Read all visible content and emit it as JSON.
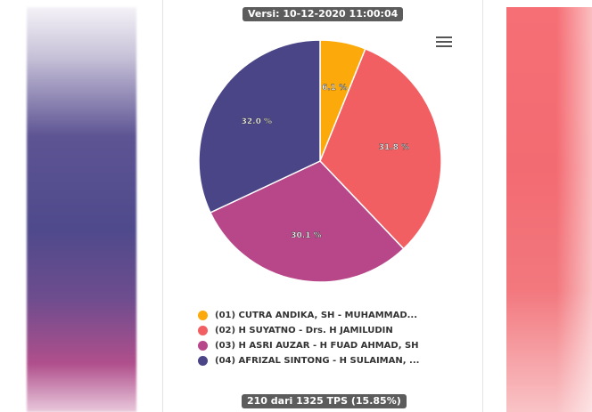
{
  "header": {
    "version_text": "Versi: 10-12-2020 11:00:04"
  },
  "footer": {
    "tps_text": "210 dari 1325 TPS (15.85%)"
  },
  "menu": {
    "icon": "hamburger-icon"
  },
  "chart_data": {
    "type": "pie",
    "labels": [
      "(01) CUTRA ANDIKA, SH - MUHAMMAD...",
      "(02) H SUYATNO - Drs. H JAMILUDIN",
      "(03) H ASRI AUZAR - H FUAD AHMAD, SH",
      "(04) AFRIZAL SINTONG - H SULAIMAN, ..."
    ],
    "values": [
      6.1,
      31.8,
      30.1,
      32.0
    ],
    "data_labels": [
      "6.1 %",
      "31.8 %",
      "30.1 %",
      "32.0 %"
    ],
    "colors": [
      "#fca90b",
      "#f25f62",
      "#b8478a",
      "#4a4586"
    ],
    "legend_position": "bottom"
  }
}
